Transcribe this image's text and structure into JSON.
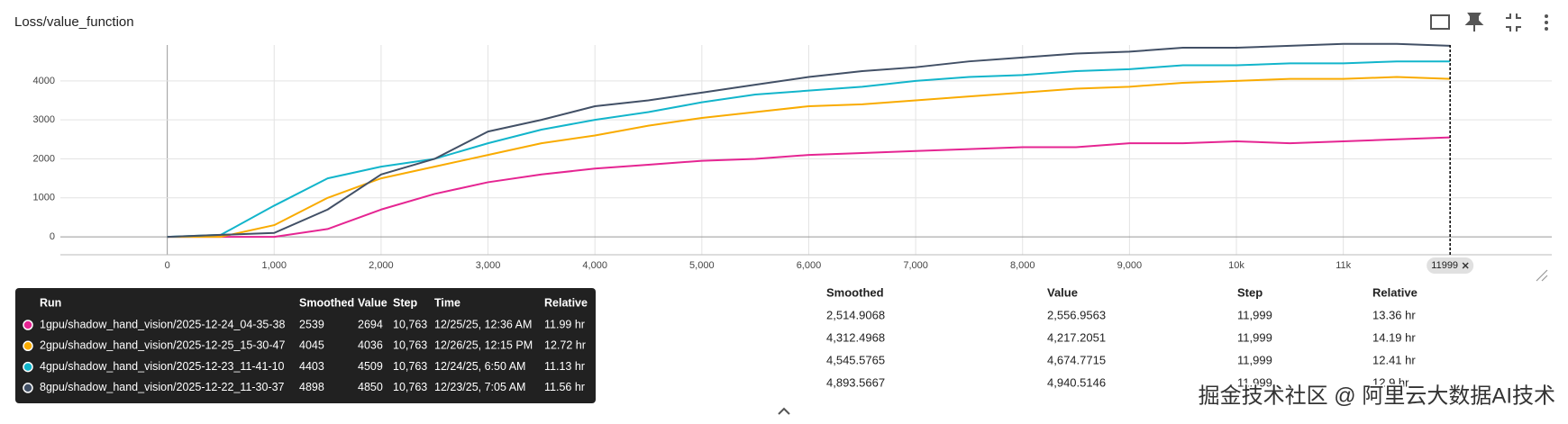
{
  "header": {
    "title": "Loss/value_function"
  },
  "chart_data": {
    "type": "line",
    "x": [
      0,
      500,
      1000,
      1500,
      2000,
      2500,
      3000,
      3500,
      4000,
      4500,
      5000,
      5500,
      6000,
      6500,
      7000,
      7500,
      8000,
      8500,
      9000,
      9500,
      10000,
      10500,
      11000,
      11500,
      11999
    ],
    "series": [
      {
        "name": "1gpu/shadow_hand_vision/2025-12-24_04-35-38",
        "color": "#e52592",
        "values": [
          0,
          0,
          0,
          200,
          700,
          1100,
          1400,
          1600,
          1750,
          1850,
          1950,
          2000,
          2100,
          2150,
          2200,
          2250,
          2300,
          2300,
          2400,
          2400,
          2450,
          2400,
          2450,
          2500,
          2550
        ]
      },
      {
        "name": "2gpu/shadow_hand_vision/2025-12-25_15-30-47",
        "color": "#f9ab00",
        "values": [
          0,
          0,
          300,
          1000,
          1500,
          1800,
          2100,
          2400,
          2600,
          2850,
          3050,
          3200,
          3350,
          3400,
          3500,
          3600,
          3700,
          3800,
          3850,
          3950,
          4000,
          4050,
          4050,
          4100,
          4050
        ]
      },
      {
        "name": "4gpu/shadow_hand_vision/2025-12-23_11-41-10",
        "color": "#12b5cb",
        "values": [
          0,
          50,
          800,
          1500,
          1800,
          2000,
          2400,
          2750,
          3000,
          3200,
          3450,
          3650,
          3750,
          3850,
          4000,
          4100,
          4150,
          4250,
          4300,
          4400,
          4400,
          4450,
          4450,
          4500,
          4500
        ]
      },
      {
        "name": "8gpu/shadow_hand_vision/2025-12-22_11-30-37",
        "color": "#425066",
        "values": [
          0,
          50,
          100,
          700,
          1600,
          2000,
          2700,
          3000,
          3350,
          3500,
          3700,
          3900,
          4100,
          4250,
          4350,
          4500,
          4600,
          4700,
          4750,
          4850,
          4850,
          4900,
          4950,
          4950,
          4900
        ]
      }
    ],
    "xlim": [
      -1000,
      12950
    ],
    "ylim": [
      -460,
      4920
    ],
    "xticks": [
      0,
      {
        "value": 1000,
        "label": "1,000"
      },
      {
        "value": 2000,
        "label": "2,000"
      },
      {
        "value": 3000,
        "label": "3,000"
      },
      {
        "value": 4000,
        "label": "4,000"
      },
      {
        "value": 5000,
        "label": "5,000"
      },
      {
        "value": 6000,
        "label": "6,000"
      },
      {
        "value": 7000,
        "label": "7,000"
      },
      {
        "value": 8000,
        "label": "8,000"
      },
      {
        "value": 9000,
        "label": "9,000"
      },
      {
        "value": 10000,
        "label": "10k"
      },
      {
        "value": 11000,
        "label": "11k"
      }
    ],
    "yticks": [
      0,
      1000,
      2000,
      3000,
      4000
    ],
    "grid": true,
    "cursor_x": 11999
  },
  "tooltip": {
    "columns": [
      "Run",
      "Smoothed",
      "Value",
      "Step",
      "Time",
      "Relative"
    ],
    "rows": [
      [
        "1gpu/shadow_hand_vision/2025-12-24_04-35-38",
        "2539",
        "2694",
        "10,763",
        "12/25/25, 12:36 AM",
        "11.99 hr"
      ],
      [
        "2gpu/shadow_hand_vision/2025-12-25_15-30-47",
        "4045",
        "4036",
        "10,763",
        "12/26/25, 12:15 PM",
        "12.72 hr"
      ],
      [
        "4gpu/shadow_hand_vision/2025-12-23_11-41-10",
        "4403",
        "4509",
        "10,763",
        "12/24/25, 6:50 AM",
        "11.13 hr"
      ],
      [
        "8gpu/shadow_hand_vision/2025-12-22_11-30-37",
        "4898",
        "4850",
        "10,763",
        "12/23/25, 7:05 AM",
        "11.56 hr"
      ]
    ]
  },
  "table": {
    "columns": [
      "Smoothed",
      "Value",
      "Step",
      "Relative"
    ],
    "rows": [
      [
        "2,514.9068",
        "2,556.9563",
        "11,999",
        "13.36 hr"
      ],
      [
        "4,312.4968",
        "4,217.2051",
        "11,999",
        "14.19 hr"
      ],
      [
        "4,545.5765",
        "4,674.7715",
        "11,999",
        "12.41 hr"
      ],
      [
        "4,893.5667",
        "4,940.5146",
        "11,999",
        "12.9 hr"
      ]
    ]
  },
  "watermark": "掘金技术社区 @ 阿里云大数据AI技术"
}
